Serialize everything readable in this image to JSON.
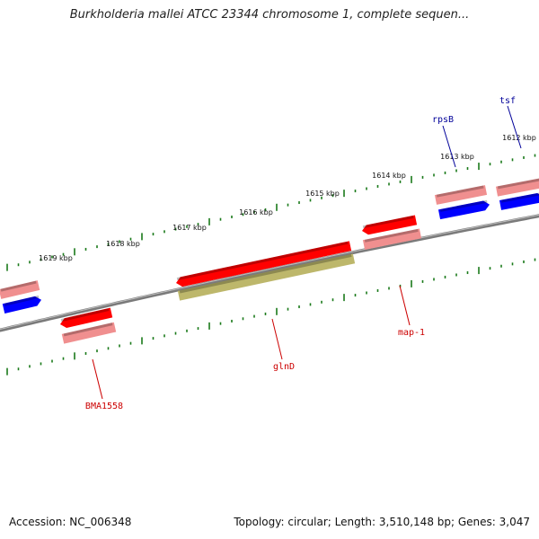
{
  "title": "Burkholderia mallei ATCC 23344 chromosome 1, complete sequen...",
  "footer": {
    "accession": "Accession: NC_006348",
    "stats": "Topology: circular; Length: 3,510,148 bp; Genes: 3,047"
  },
  "colors": {
    "backbone": "#7a7a7a",
    "tick": "#1a7a1a",
    "gene_red": "#ff0000",
    "cds_pink": "#f08f8f",
    "misc_olive": "#bdb76b",
    "gene_blue": "#0000ff",
    "label_red": "#cc0000",
    "label_blue": "#000099"
  },
  "tick_labels": [
    "1612 kbp",
    "1613 kbp",
    "1614 kbp",
    "1615 kbp",
    "1616 kbp",
    "1617 kbp",
    "1618 kbp",
    "1619 kbp"
  ],
  "gene_labels": [
    {
      "text": "tsf",
      "color": "blue"
    },
    {
      "text": "rpsB",
      "color": "blue"
    },
    {
      "text": "map-1",
      "color": "red"
    },
    {
      "text": "glnD",
      "color": "red"
    },
    {
      "text": "BMA1558",
      "color": "red"
    }
  ]
}
